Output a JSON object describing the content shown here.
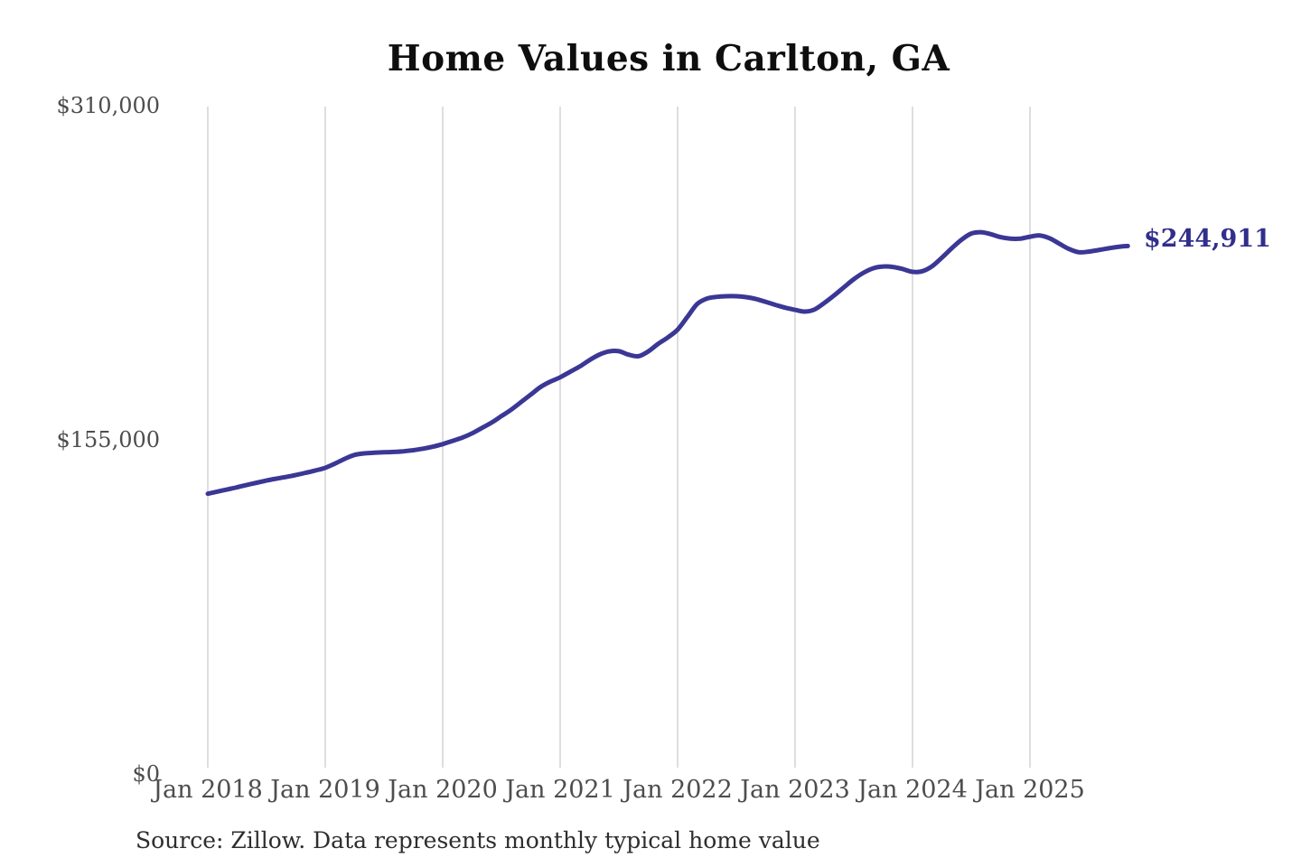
{
  "page": {
    "background_color": "#ffffff"
  },
  "chart_data": {
    "type": "line",
    "title": "Home Values in Carlton, GA",
    "xlabel": "",
    "ylabel": "",
    "ylim": [
      0,
      310000
    ],
    "grid": "vertical-only",
    "legend": "none",
    "gridline_color": "#c9c9c9",
    "axis_label_color": "#4d4d4d",
    "line_color": "#3a3795",
    "end_label_color": "#322e8c",
    "end_label": "$244,911",
    "end_value": 244911,
    "y_tick_labels": [
      "$310,000",
      "$155,000",
      "$0"
    ],
    "y_tick_values": [
      310000,
      155000,
      0
    ],
    "x_tick_labels": [
      "Jan 2018",
      "Jan 2019",
      "Jan 2020",
      "Jan 2021",
      "Jan 2022",
      "Jan 2023",
      "Jan 2024",
      "Jan 2025"
    ],
    "series": [
      {
        "name": "Monthly typical home value",
        "start_month": "2018-01",
        "end_month": "2025-11",
        "values": [
          130000,
          131000,
          132000,
          133000,
          134100,
          135100,
          136100,
          137000,
          137800,
          138700,
          139700,
          140800,
          142000,
          144000,
          146200,
          148000,
          148700,
          149000,
          149200,
          149400,
          149700,
          150200,
          150900,
          151800,
          153000,
          154500,
          156000,
          158000,
          160500,
          163000,
          166000,
          169000,
          172500,
          176000,
          179500,
          182000,
          184000,
          186500,
          189000,
          192000,
          194500,
          196000,
          196100,
          194500,
          193800,
          196000,
          199500,
          202500,
          206100,
          212000,
          218000,
          220500,
          221300,
          221600,
          221600,
          221200,
          220300,
          219000,
          217600,
          216300,
          215300,
          214500,
          215500,
          218500,
          222000,
          225800,
          229500,
          232500,
          234600,
          235400,
          235200,
          234200,
          232900,
          233200,
          235500,
          239500,
          243800,
          247800,
          250700,
          251300,
          250400,
          249000,
          248300,
          248300,
          249200,
          249800,
          248500,
          246000,
          243500,
          242000,
          242300,
          243000,
          243800,
          244500,
          244911
        ]
      }
    ]
  },
  "source_note": "Source: Zillow. Data represents monthly typical home value"
}
